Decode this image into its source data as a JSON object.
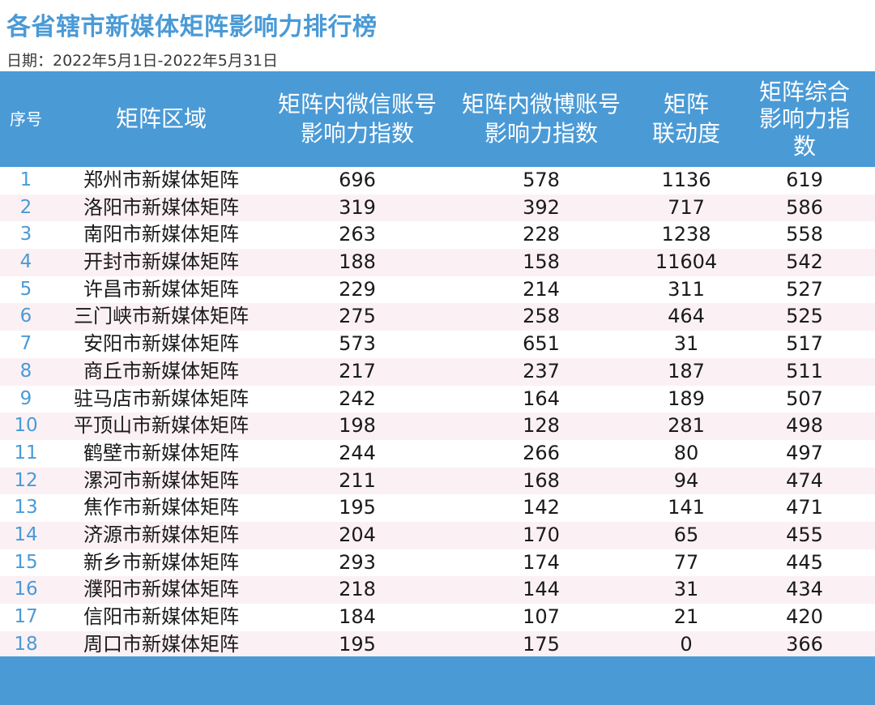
{
  "title": "各省辖市新媒体矩阵影响力排行榜",
  "date": "日期：2022年5月1日-2022年5月31日",
  "headers": {
    "idx": "序号",
    "area": "矩阵区域",
    "wechat": "矩阵内微信账号\n影响力指数",
    "weibo": "矩阵内微博账号\n影响力指数",
    "linkage": "矩阵\n联动度",
    "composite": "矩阵综合\n影响力指\n数"
  },
  "rows": [
    {
      "idx": "1",
      "area": "郑州市新媒体矩阵",
      "wechat": "696",
      "weibo": "578",
      "linkage": "1136",
      "composite": "619"
    },
    {
      "idx": "2",
      "area": "洛阳市新媒体矩阵",
      "wechat": "319",
      "weibo": "392",
      "linkage": "717",
      "composite": "586"
    },
    {
      "idx": "3",
      "area": "南阳市新媒体矩阵",
      "wechat": "263",
      "weibo": "228",
      "linkage": "1238",
      "composite": "558"
    },
    {
      "idx": "4",
      "area": "开封市新媒体矩阵",
      "wechat": "188",
      "weibo": "158",
      "linkage": "11604",
      "composite": "542"
    },
    {
      "idx": "5",
      "area": "许昌市新媒体矩阵",
      "wechat": "229",
      "weibo": "214",
      "linkage": "311",
      "composite": "527"
    },
    {
      "idx": "6",
      "area": "三门峡市新媒体矩阵",
      "wechat": "275",
      "weibo": "258",
      "linkage": "464",
      "composite": "525"
    },
    {
      "idx": "7",
      "area": "安阳市新媒体矩阵",
      "wechat": "573",
      "weibo": "651",
      "linkage": "31",
      "composite": "517"
    },
    {
      "idx": "8",
      "area": "商丘市新媒体矩阵",
      "wechat": "217",
      "weibo": "237",
      "linkage": "187",
      "composite": "511"
    },
    {
      "idx": "9",
      "area": "驻马店市新媒体矩阵",
      "wechat": "242",
      "weibo": "164",
      "linkage": "189",
      "composite": "507"
    },
    {
      "idx": "10",
      "area": "平顶山市新媒体矩阵",
      "wechat": "198",
      "weibo": "128",
      "linkage": "281",
      "composite": "498"
    },
    {
      "idx": "11",
      "area": "鹤壁市新媒体矩阵",
      "wechat": "244",
      "weibo": "266",
      "linkage": "80",
      "composite": "497"
    },
    {
      "idx": "12",
      "area": "漯河市新媒体矩阵",
      "wechat": "211",
      "weibo": "168",
      "linkage": "94",
      "composite": "474"
    },
    {
      "idx": "13",
      "area": "焦作市新媒体矩阵",
      "wechat": "195",
      "weibo": "142",
      "linkage": "141",
      "composite": "471"
    },
    {
      "idx": "14",
      "area": "济源市新媒体矩阵",
      "wechat": "204",
      "weibo": "170",
      "linkage": "65",
      "composite": "455"
    },
    {
      "idx": "15",
      "area": "新乡市新媒体矩阵",
      "wechat": "293",
      "weibo": "174",
      "linkage": "77",
      "composite": "445"
    },
    {
      "idx": "16",
      "area": "濮阳市新媒体矩阵",
      "wechat": "218",
      "weibo": "144",
      "linkage": "31",
      "composite": "434"
    },
    {
      "idx": "17",
      "area": "信阳市新媒体矩阵",
      "wechat": "184",
      "weibo": "107",
      "linkage": "21",
      "composite": "420"
    },
    {
      "idx": "18",
      "area": "周口市新媒体矩阵",
      "wechat": "195",
      "weibo": "175",
      "linkage": "0",
      "composite": "366"
    }
  ],
  "colors": {
    "header_bg": "#4a9ad6",
    "title": "#4a9ad6",
    "stripe": "#fbf1f4",
    "index_text": "#4a9ad6"
  }
}
